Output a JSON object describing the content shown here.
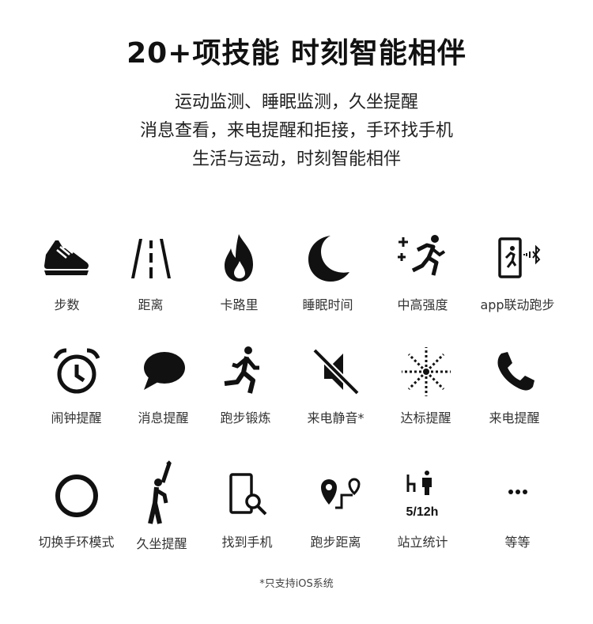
{
  "header": {
    "title": "20+项技能  时刻智能相伴",
    "subtitle_lines": [
      "运动监测、睡眠监测，久坐提醒",
      "消息查看，来电提醒和拒接，手环找手机",
      "生活与运动，时刻智能相伴"
    ]
  },
  "features": [
    {
      "label": "步数",
      "icon": "shoe-icon"
    },
    {
      "label": "距离",
      "icon": "road-icon"
    },
    {
      "label": "卡路里",
      "icon": "flame-icon"
    },
    {
      "label": "睡眠时间",
      "icon": "moon-icon"
    },
    {
      "label": "中高强度",
      "icon": "running-intensity-icon"
    },
    {
      "label": "app联动跑步",
      "icon": "phone-bluetooth-run-icon"
    },
    {
      "label": "闹钟提醒",
      "icon": "alarm-clock-icon"
    },
    {
      "label": "消息提醒",
      "icon": "chat-bubble-icon"
    },
    {
      "label": "跑步锻炼",
      "icon": "runner-icon"
    },
    {
      "label": "来电静音*",
      "icon": "mute-icon"
    },
    {
      "label": "达标提醒",
      "icon": "fireworks-icon"
    },
    {
      "label": "来电提醒",
      "icon": "phone-icon"
    },
    {
      "label": "切换手环模式",
      "icon": "circle-icon"
    },
    {
      "label": "久坐提醒",
      "icon": "stretching-person-icon"
    },
    {
      "label": "找到手机",
      "icon": "phone-search-icon"
    },
    {
      "label": "跑步距离",
      "icon": "route-pin-icon"
    },
    {
      "label": "站立统计",
      "icon": "standing-stats-icon",
      "icon_text": "5/12h"
    },
    {
      "label": "等等",
      "icon": "more-icon"
    }
  ],
  "footnote": "*只支持iOS系统"
}
